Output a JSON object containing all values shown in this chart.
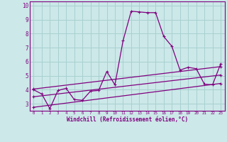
{
  "background_color": "#cce8e8",
  "grid_color": "#a8d0d0",
  "line_color": "#800080",
  "xlabel": "Windchill (Refroidissement éolien,°C)",
  "xlim": [
    -0.5,
    23.5
  ],
  "ylim": [
    2.5,
    10.3
  ],
  "yticks": [
    3,
    4,
    5,
    6,
    7,
    8,
    9,
    10
  ],
  "xticks": [
    0,
    1,
    2,
    3,
    4,
    5,
    6,
    7,
    8,
    9,
    10,
    11,
    12,
    13,
    14,
    15,
    16,
    17,
    18,
    19,
    20,
    21,
    22,
    23
  ],
  "line1_x": [
    0,
    1,
    2,
    3,
    4,
    5,
    6,
    7,
    8,
    9,
    10,
    11,
    12,
    13,
    14,
    15,
    16,
    17,
    18,
    19,
    20,
    21,
    22,
    23
  ],
  "line1_y": [
    4.0,
    3.7,
    2.65,
    3.95,
    4.1,
    3.3,
    3.25,
    3.9,
    3.95,
    5.3,
    4.35,
    7.5,
    9.6,
    9.55,
    9.5,
    9.5,
    7.8,
    7.1,
    5.4,
    5.6,
    5.5,
    4.4,
    4.35,
    5.85
  ],
  "line2_x": [
    0,
    23
  ],
  "line2_y": [
    4.05,
    5.65
  ],
  "line3_x": [
    0,
    23
  ],
  "line3_y": [
    3.5,
    5.05
  ],
  "line4_x": [
    0,
    23
  ],
  "line4_y": [
    2.75,
    4.45
  ]
}
